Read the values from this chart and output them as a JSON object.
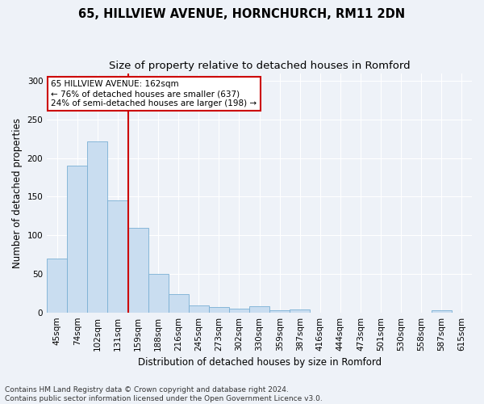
{
  "title_line1": "65, HILLVIEW AVENUE, HORNCHURCH, RM11 2DN",
  "title_line2": "Size of property relative to detached houses in Romford",
  "xlabel": "Distribution of detached houses by size in Romford",
  "ylabel": "Number of detached properties",
  "bar_labels": [
    "45sqm",
    "74sqm",
    "102sqm",
    "131sqm",
    "159sqm",
    "188sqm",
    "216sqm",
    "245sqm",
    "273sqm",
    "302sqm",
    "330sqm",
    "359sqm",
    "387sqm",
    "416sqm",
    "444sqm",
    "473sqm",
    "501sqm",
    "530sqm",
    "558sqm",
    "587sqm",
    "615sqm"
  ],
  "bar_values": [
    70,
    190,
    222,
    145,
    110,
    50,
    24,
    9,
    7,
    5,
    8,
    3,
    4,
    0,
    0,
    0,
    0,
    0,
    0,
    3,
    0
  ],
  "bar_color": "#c9ddf0",
  "bar_edge_color": "#7aafd4",
  "vline_color": "#cc0000",
  "vline_pos": 3.5,
  "annotation_text": "65 HILLVIEW AVENUE: 162sqm\n← 76% of detached houses are smaller (637)\n24% of semi-detached houses are larger (198) →",
  "annotation_box_facecolor": "#ffffff",
  "annotation_box_edgecolor": "#cc0000",
  "ylim": [
    0,
    310
  ],
  "yticks": [
    0,
    50,
    100,
    150,
    200,
    250,
    300
  ],
  "footer_line1": "Contains HM Land Registry data © Crown copyright and database right 2024.",
  "footer_line2": "Contains public sector information licensed under the Open Government Licence v3.0.",
  "bg_color": "#eef2f8",
  "grid_color": "#ffffff",
  "title_fontsize": 10.5,
  "subtitle_fontsize": 9.5,
  "axis_label_fontsize": 8.5,
  "tick_fontsize": 7.5,
  "annot_fontsize": 7.5,
  "footer_fontsize": 6.5
}
